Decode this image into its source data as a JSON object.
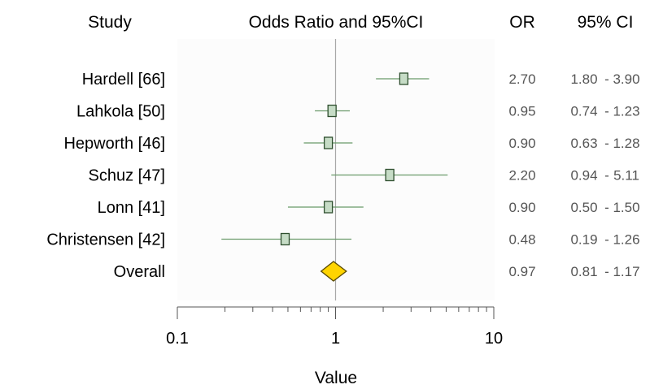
{
  "chart_data": {
    "type": "forest",
    "headers": {
      "study": "Study",
      "plot": "Odds Ratio and 95%CI",
      "or": "OR",
      "ci": "95% CI"
    },
    "studies": [
      {
        "label": "Hardell  [66]",
        "or": 2.7,
        "lo": 1.8,
        "hi": 3.9,
        "or_text": "2.70",
        "ci_lo_text": "1.80",
        "ci_hi_text": "3.90"
      },
      {
        "label": "Lahkola  [50]",
        "or": 0.95,
        "lo": 0.74,
        "hi": 1.23,
        "or_text": "0.95",
        "ci_lo_text": "0.74",
        "ci_hi_text": "1.23"
      },
      {
        "label": "Hepworth [46]",
        "or": 0.9,
        "lo": 0.63,
        "hi": 1.28,
        "or_text": "0.90",
        "ci_lo_text": "0.63",
        "ci_hi_text": "1.28"
      },
      {
        "label": "Schuz   [47]",
        "or": 2.2,
        "lo": 0.94,
        "hi": 5.11,
        "or_text": "2.20",
        "ci_lo_text": "0.94",
        "ci_hi_text": "5.11"
      },
      {
        "label": "Lonn    [41]",
        "or": 0.9,
        "lo": 0.5,
        "hi": 1.5,
        "or_text": "0.90",
        "ci_lo_text": "0.50",
        "ci_hi_text": "1.50"
      },
      {
        "label": "Christensen [42]",
        "or": 0.48,
        "lo": 0.19,
        "hi": 1.26,
        "or_text": "0.48",
        "ci_lo_text": "0.19",
        "ci_hi_text": "1.26"
      }
    ],
    "overall": {
      "label": "Overall",
      "or": 0.97,
      "lo": 0.81,
      "hi": 1.17,
      "or_text": "0.97",
      "ci_lo_text": "0.81",
      "ci_hi_text": "1.17"
    },
    "x_axis": {
      "scale": "log",
      "range": [
        0.1,
        10
      ],
      "major_ticks": [
        0.1,
        1,
        10
      ],
      "tick_labels": [
        "0.1",
        "1",
        "10"
      ],
      "label": "Value"
    },
    "reference_line": 1,
    "colors": {
      "marker_fill": "#c6dcc6",
      "marker_stroke": "#2f4f2f",
      "ci_line": "#6a9a6a",
      "reference_line": "#a8a8a8",
      "diamond_fill": "#ffd400",
      "diamond_stroke": "#5a4a00",
      "panel_bg": "#fcfcfc"
    }
  }
}
